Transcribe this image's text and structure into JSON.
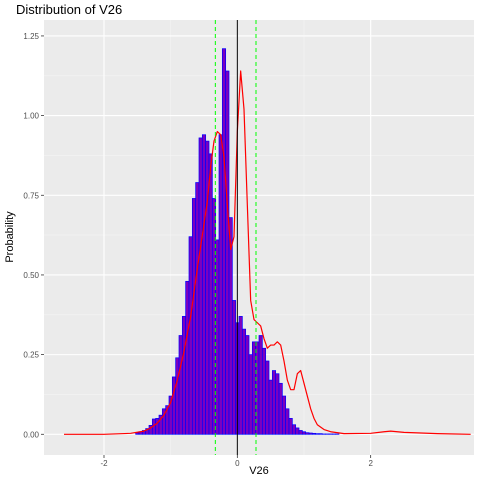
{
  "chart_data": {
    "type": "histogram",
    "title": "Distribution of V26",
    "xlabel": "V26",
    "ylabel": "Probability",
    "xlim": [
      -2.9,
      3.55
    ],
    "ylim": [
      -0.065,
      1.3
    ],
    "x_ticks": [
      -2,
      0,
      2
    ],
    "x_tick_labels": [
      "-2",
      "0",
      "2"
    ],
    "y_ticks": [
      0.0,
      0.25,
      0.5,
      0.75,
      1.0,
      1.25
    ],
    "y_tick_labels": [
      "0.00",
      "0.25",
      "0.50",
      "0.75",
      "1.00",
      "1.25"
    ],
    "grid": true,
    "bin_width": 0.05,
    "bins": {
      "x": [
        -1.5,
        -1.45,
        -1.4,
        -1.35,
        -1.3,
        -1.25,
        -1.2,
        -1.15,
        -1.1,
        -1.05,
        -1.0,
        -0.95,
        -0.9,
        -0.85,
        -0.8,
        -0.75,
        -0.7,
        -0.65,
        -0.6,
        -0.55,
        -0.5,
        -0.45,
        -0.4,
        -0.35,
        -0.3,
        -0.25,
        -0.2,
        -0.15,
        -0.1,
        -0.05,
        0.0,
        0.05,
        0.1,
        0.15,
        0.2,
        0.25,
        0.3,
        0.35,
        0.4,
        0.45,
        0.5,
        0.55,
        0.6,
        0.65,
        0.7,
        0.75,
        0.8,
        0.85,
        0.9,
        0.95,
        1.0,
        1.05,
        1.1,
        1.15,
        1.2,
        1.25,
        1.3,
        1.35,
        1.4,
        1.45,
        1.5
      ],
      "y": [
        0.005,
        0.008,
        0.012,
        0.018,
        0.028,
        0.048,
        0.05,
        0.06,
        0.08,
        0.09,
        0.12,
        0.18,
        0.24,
        0.31,
        0.37,
        0.48,
        0.62,
        0.74,
        0.79,
        0.93,
        0.94,
        0.92,
        0.88,
        0.74,
        0.61,
        0.94,
        1.21,
        1.14,
        0.68,
        0.42,
        0.35,
        0.37,
        0.33,
        0.31,
        0.25,
        0.29,
        0.29,
        0.31,
        0.27,
        0.23,
        0.17,
        0.2,
        0.19,
        0.16,
        0.12,
        0.08,
        0.05,
        0.03,
        0.02,
        0.012,
        0.008,
        0.005,
        0.004,
        0.003,
        0.002,
        0.002,
        0.001,
        0.001,
        0.001,
        0.001,
        0.001
      ]
    },
    "density": {
      "x": [
        -2.6,
        -2.0,
        -1.6,
        -1.4,
        -1.3,
        -1.2,
        -1.1,
        -1.0,
        -0.9,
        -0.8,
        -0.7,
        -0.6,
        -0.5,
        -0.45,
        -0.4,
        -0.35,
        -0.3,
        -0.25,
        -0.2,
        -0.15,
        -0.1,
        -0.05,
        0.0,
        0.05,
        0.1,
        0.15,
        0.2,
        0.25,
        0.3,
        0.35,
        0.4,
        0.45,
        0.5,
        0.55,
        0.6,
        0.65,
        0.7,
        0.75,
        0.8,
        0.85,
        0.9,
        0.95,
        1.0,
        1.05,
        1.1,
        1.15,
        1.2,
        1.3,
        1.4,
        1.6,
        2.0,
        2.2,
        2.3,
        2.5,
        3.0,
        3.5
      ],
      "y": [
        0.0,
        0.0,
        0.003,
        0.01,
        0.02,
        0.035,
        0.06,
        0.1,
        0.17,
        0.26,
        0.37,
        0.52,
        0.66,
        0.73,
        0.84,
        0.92,
        0.95,
        0.94,
        0.87,
        0.72,
        0.58,
        0.62,
        0.95,
        1.14,
        1.02,
        0.72,
        0.42,
        0.36,
        0.35,
        0.34,
        0.3,
        0.27,
        0.28,
        0.28,
        0.29,
        0.28,
        0.23,
        0.17,
        0.14,
        0.14,
        0.19,
        0.2,
        0.16,
        0.12,
        0.08,
        0.05,
        0.03,
        0.015,
        0.008,
        0.002,
        0.003,
        0.008,
        0.01,
        0.006,
        0.002,
        0.0
      ]
    },
    "mean_line": 0.0,
    "interval_lines": [
      -0.33,
      0.28
    ],
    "colors": {
      "bar_fill": "#7b00c0",
      "bar_edge": "#0000ff",
      "density": "#ff0000",
      "mean": "#000000",
      "interval": "#00ff00",
      "panel": "#ebebeb",
      "grid": "#ffffff"
    }
  }
}
